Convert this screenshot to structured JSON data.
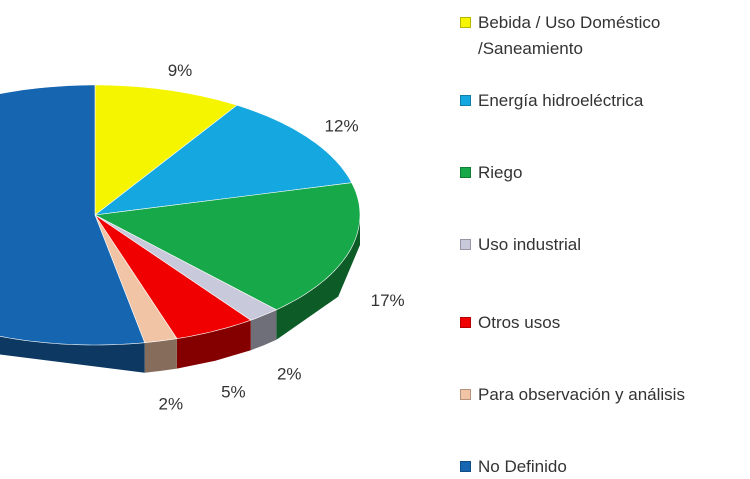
{
  "chart_data": {
    "type": "pie3d",
    "categories": [
      "Bebida / Uso Doméstico /Saneamiento",
      "Energía hidroeléctrica",
      "Riego",
      "Uso industrial",
      "Otros usos",
      "Para observación y análisis",
      "No Definido"
    ],
    "values": [
      9,
      12,
      17,
      2,
      5,
      2,
      53
    ],
    "value_labels": [
      "9%",
      "12%",
      "17%",
      "2%",
      "5%",
      "2%",
      null
    ],
    "colors": [
      "#f5f500",
      "#15a8e0",
      "#17a849",
      "#c9c9dc",
      "#f00000",
      "#f2c4a6",
      "#1565b0"
    ],
    "legend": "right"
  }
}
